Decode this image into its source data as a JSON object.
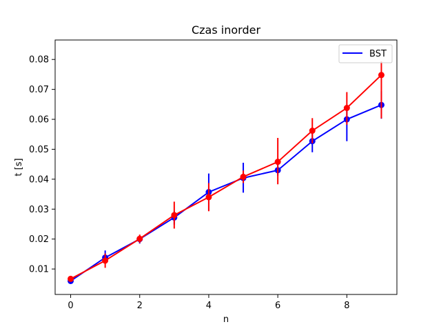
{
  "chart_data": {
    "type": "line",
    "title": "Czas inorder",
    "xlabel": "n",
    "ylabel": "t [s]",
    "xlim": [
      -0.45,
      9.45
    ],
    "ylim": [
      0.0015,
      0.0865
    ],
    "xticks": [
      0,
      2,
      4,
      6,
      8
    ],
    "xtick_labels": [
      "0",
      "2",
      "4",
      "6",
      "8"
    ],
    "yticks": [
      0.01,
      0.02,
      0.03,
      0.04,
      0.05,
      0.06,
      0.07,
      0.08
    ],
    "ytick_labels": [
      "0.01",
      "0.02",
      "0.03",
      "0.04",
      "0.05",
      "0.06",
      "0.07",
      "0.08"
    ],
    "grid": false,
    "legend_position": "top-right",
    "series": [
      {
        "name": "BST",
        "color": "#0000ff",
        "x": [
          0,
          1,
          2,
          3,
          4,
          5,
          6,
          7,
          8,
          9
        ],
        "y": [
          0.006,
          0.0138,
          0.02,
          0.0272,
          0.0357,
          0.0404,
          0.043,
          0.0527,
          0.06,
          0.0648
        ],
        "err_low": [
          0.0052,
          0.0124,
          0.0185,
          0.0248,
          0.0295,
          0.0355,
          0.0412,
          0.049,
          0.0527,
          0.0602
        ],
        "err_high": [
          0.0068,
          0.0162,
          0.0212,
          0.0294,
          0.0419,
          0.0455,
          0.0448,
          0.0562,
          0.0637,
          0.0694
        ]
      },
      {
        "color": "#ff0000",
        "x": [
          0,
          1,
          2,
          3,
          4,
          5,
          6,
          7,
          8,
          9
        ],
        "y": [
          0.0067,
          0.0128,
          0.0201,
          0.028,
          0.034,
          0.0408,
          0.0458,
          0.0562,
          0.0638,
          0.0748
        ],
        "err_low": [
          0.0058,
          0.0104,
          0.0187,
          0.0235,
          0.0293,
          0.0387,
          0.0383,
          0.052,
          0.0582,
          0.0603
        ],
        "err_high": [
          0.0076,
          0.0152,
          0.0215,
          0.0325,
          0.0387,
          0.0429,
          0.0538,
          0.0604,
          0.0691,
          0.0794
        ]
      }
    ]
  }
}
